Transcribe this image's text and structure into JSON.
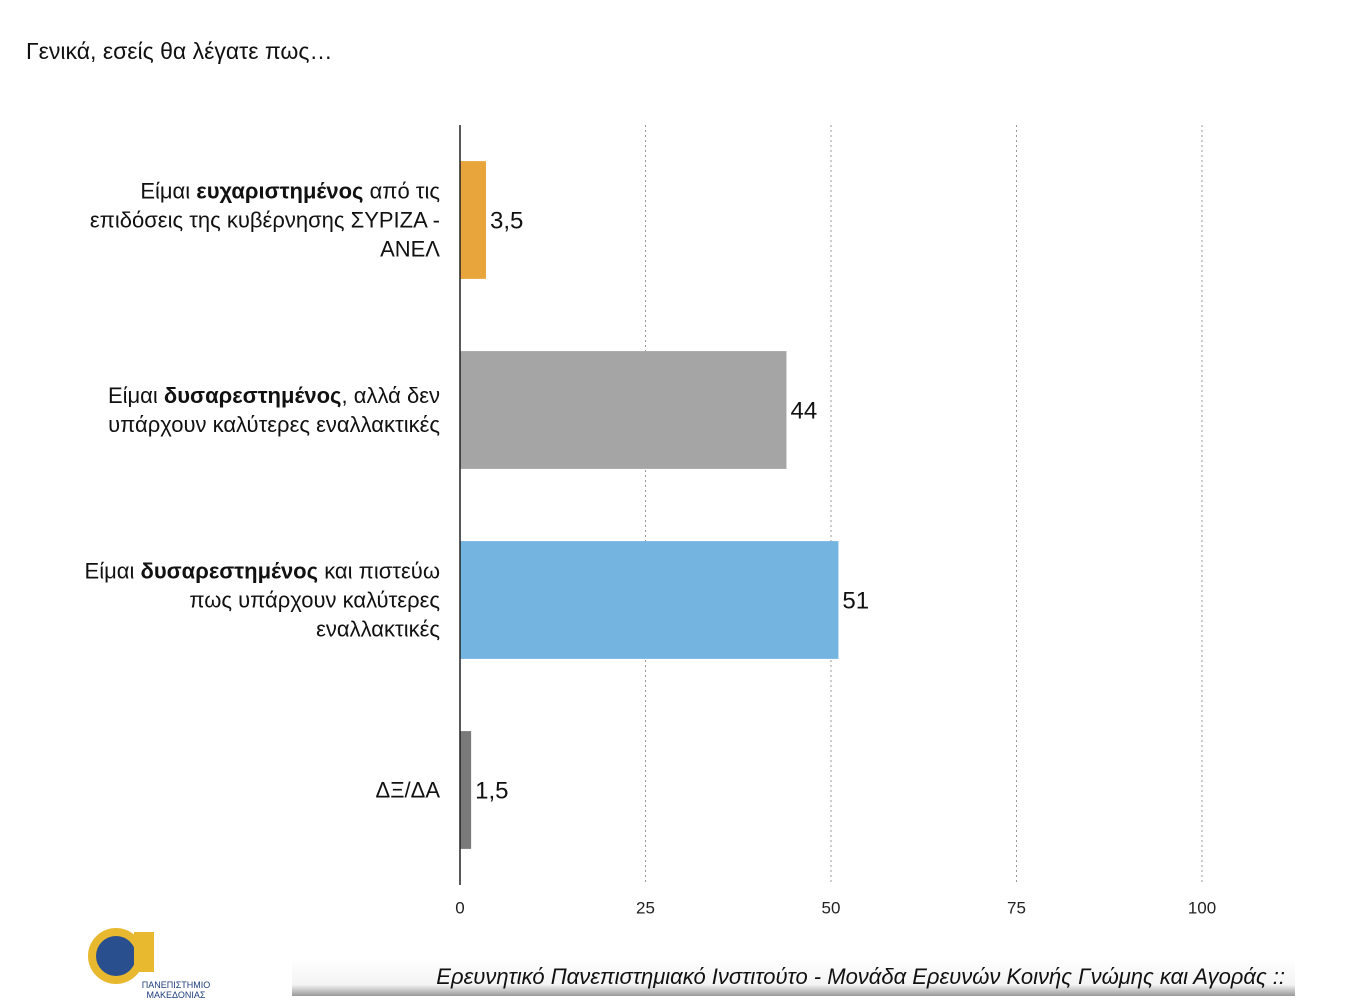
{
  "chart_data": {
    "type": "bar",
    "orientation": "horizontal",
    "title": "Γενικά, εσείς θα λέγατε πως…",
    "categories": [
      [
        "Είμαι ",
        "ευχαριστημένος",
        " από τις επιδόσεις  της κυβέρνησης ΣΥΡΙΖΑ - ΑΝΕΛ"
      ],
      [
        "Είμαι ",
        "δυσαρεστημένος",
        ", αλλά δεν υπάρχουν καλύτερες εναλλακτικές"
      ],
      [
        "Είμαι ",
        "δυσαρεστημένος",
        " και πιστεύω πως υπάρχουν καλύτερες εναλλακτικές"
      ],
      [
        "ΔΞ/ΔΑ"
      ]
    ],
    "values": [
      3.5,
      44,
      51,
      1.5
    ],
    "value_labels": [
      "3,5",
      "44",
      "51",
      "1,5"
    ],
    "colors": [
      "#e8a53c",
      "#a5a5a5",
      "#74b4e0",
      "#7a7a7a"
    ],
    "xlim": [
      0,
      100
    ],
    "xticks": [
      0,
      25,
      50,
      75,
      100
    ],
    "grid": true
  },
  "footer": {
    "source": "Ερευνητικό Πανεπιστημιακό Ινστιτούτο - Μονάδα Ερευνών Κοινής Γνώμης και Αγοράς ::",
    "logo_text": "ΠΑΝΕΠΙΣΤΗΜΙΟ ΜΑΚΕΔΟΝΙΑΣ"
  }
}
